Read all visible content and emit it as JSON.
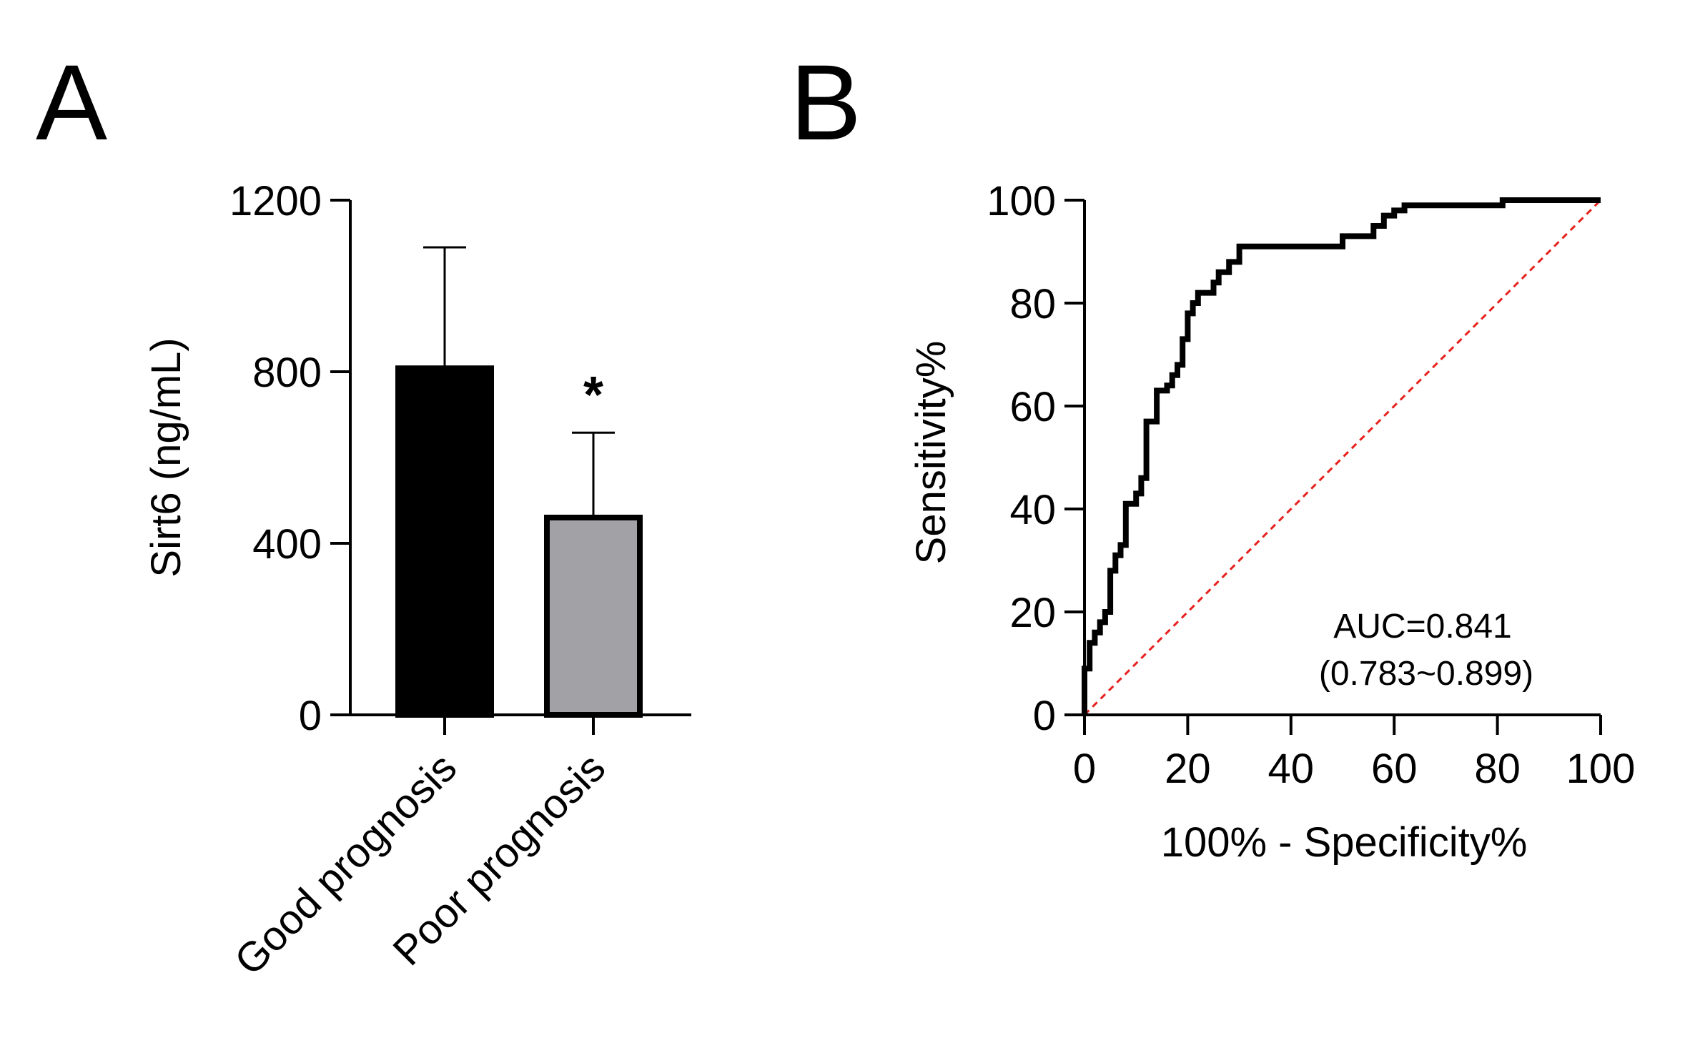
{
  "panels": {
    "a": {
      "letter": "A"
    },
    "b": {
      "letter": "B"
    }
  },
  "chart_data": [
    {
      "type": "bar",
      "title": "",
      "categories": [
        "Good prognosis",
        "Poor prognosis"
      ],
      "values": [
        808,
        460
      ],
      "error_plus": [
        1090,
        658
      ],
      "bar_colors": [
        "#000000",
        "#a2a1a6"
      ],
      "ylabel": "Sirt6 (ng/mL)",
      "xlabel": "",
      "ylim": [
        0,
        1200
      ],
      "yticks": [
        0,
        400,
        800,
        1200
      ],
      "ytick_labels": [
        "0",
        "400",
        "800",
        "1200"
      ],
      "significance": [
        "",
        "*"
      ],
      "grid": false,
      "legend": "none"
    },
    {
      "type": "line",
      "title": "",
      "xlabel": "100% - Specificity%",
      "ylabel": "Sensitivity%",
      "xlim": [
        0,
        100
      ],
      "ylim": [
        0,
        100
      ],
      "xticks": [
        0,
        20,
        40,
        60,
        80,
        100
      ],
      "yticks": [
        0,
        20,
        40,
        60,
        80,
        100
      ],
      "xtick_labels": [
        "0",
        "20",
        "40",
        "60",
        "80",
        "100"
      ],
      "ytick_labels": [
        "0",
        "20",
        "40",
        "60",
        "80",
        "100"
      ],
      "grid": false,
      "legend": "none",
      "annotations": [
        "AUC=0.841",
        "(0.783~0.899)"
      ],
      "series": [
        {
          "kind": "roc",
          "color": "#000000",
          "x": [
            0,
            0,
            1,
            1,
            2,
            2,
            3,
            3,
            4,
            4,
            5,
            5,
            6,
            6,
            7,
            7,
            8,
            8,
            10,
            10,
            11,
            11,
            12,
            12,
            14,
            14,
            16,
            16,
            17,
            17,
            18,
            18,
            19,
            19,
            20,
            20,
            21,
            21,
            22,
            22,
            25,
            25,
            26,
            26,
            28,
            28,
            30,
            30,
            50,
            50,
            56,
            56,
            58,
            58,
            60,
            60,
            62,
            62,
            81,
            81,
            100
          ],
          "y": [
            0,
            9,
            9,
            14,
            14,
            16,
            16,
            18,
            18,
            20,
            20,
            28,
            28,
            31,
            31,
            33,
            33,
            41,
            41,
            43,
            43,
            46,
            46,
            57,
            57,
            63,
            63,
            64,
            64,
            66,
            66,
            68,
            68,
            73,
            73,
            78,
            78,
            80,
            80,
            82,
            82,
            84,
            84,
            86,
            86,
            88,
            88,
            91,
            91,
            93,
            93,
            95,
            95,
            97,
            97,
            98,
            98,
            99,
            99,
            100,
            100
          ]
        },
        {
          "kind": "reference",
          "color": "#e8201c",
          "x": [
            0,
            100
          ],
          "y": [
            0,
            100
          ]
        }
      ]
    }
  ]
}
